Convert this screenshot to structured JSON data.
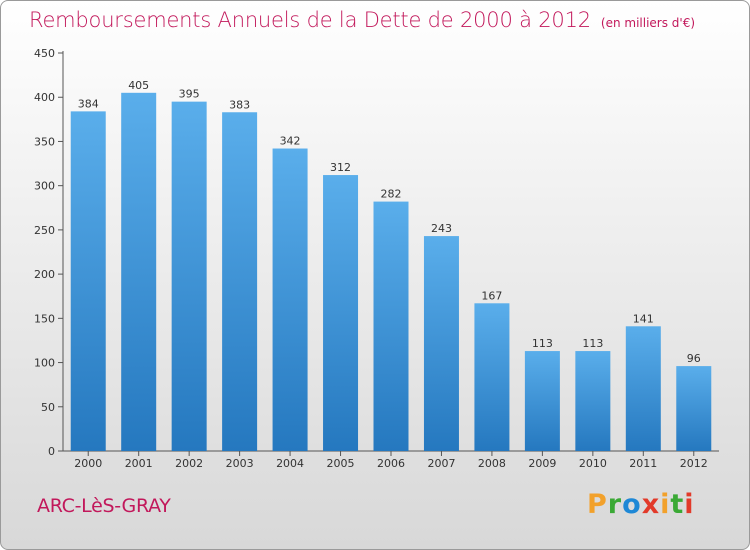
{
  "chart_data": {
    "type": "bar",
    "title": "Remboursements Annuels de la Dette de 2000 à 2012",
    "subtitle": "(en milliers d'€)",
    "categories": [
      "2000",
      "2001",
      "2002",
      "2003",
      "2004",
      "2005",
      "2006",
      "2007",
      "2008",
      "2009",
      "2010",
      "2011",
      "2012"
    ],
    "values": [
      384,
      405,
      395,
      383,
      342,
      312,
      282,
      243,
      167,
      113,
      113,
      141,
      96
    ],
    "ylim": [
      0,
      450
    ],
    "yticks": [
      0,
      50,
      100,
      150,
      200,
      250,
      300,
      350,
      400,
      450
    ],
    "xlabel": "",
    "ylabel": "",
    "grid": false,
    "bar_color_top": "#5aaeeb",
    "bar_color_bottom": "#2578bf"
  },
  "footer": {
    "commune": "ARC-LèS-GRAY"
  },
  "brand": {
    "letters": [
      "P",
      "r",
      "o",
      "x",
      "i",
      "t",
      "i"
    ],
    "colors": [
      "#f2a12b",
      "#3aa935",
      "#1e88d6",
      "#e23a2a",
      "#f2a12b",
      "#3aa935",
      "#e23a2a"
    ]
  }
}
